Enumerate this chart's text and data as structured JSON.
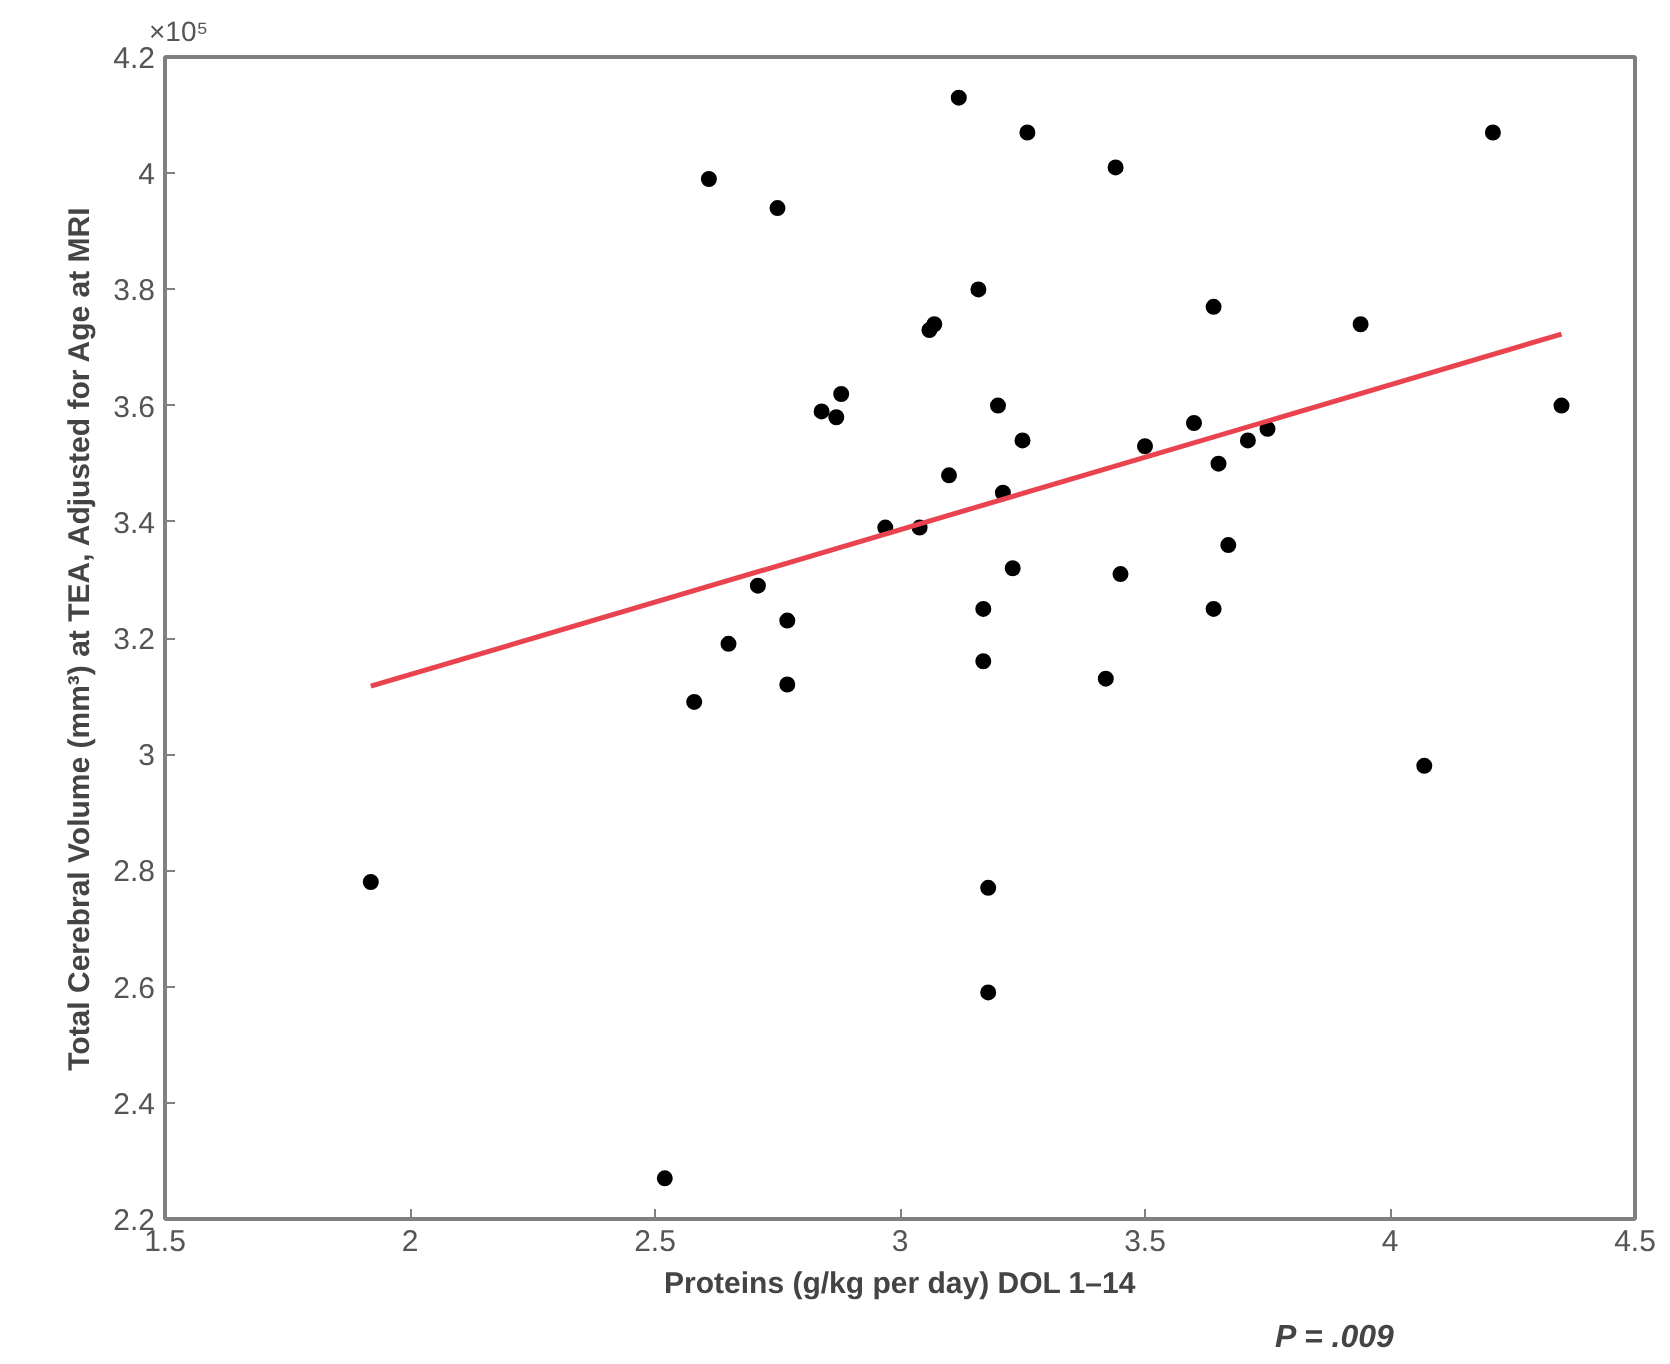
{
  "chart_data": {
    "type": "scatter",
    "xlabel": "Proteins (g/kg per day) DOL 1–14",
    "ylabel": "Total Cerebral Volume (mm³) at TEA, Adjusted for Age at MRI",
    "annotations": [
      "×10⁵",
      "P = .009"
    ],
    "xlim": [
      1.5,
      4.5
    ],
    "xticks": [
      1.5,
      2,
      2.5,
      3,
      3.5,
      4,
      4.5
    ],
    "ylim": [
      2.2,
      4.2
    ],
    "yticks": [
      2.2,
      2.4,
      2.6,
      2.8,
      3,
      3.2,
      3.4,
      3.6,
      3.8,
      4,
      4.2
    ],
    "grid": false,
    "series": [
      {
        "marker": "circle",
        "color": "#000000",
        "x": [
          1.92,
          2.52,
          2.58,
          2.65,
          2.71,
          2.77,
          2.77,
          2.61,
          2.75,
          2.84,
          2.87,
          2.88,
          2.97,
          3.04,
          3.06,
          3.07,
          3.1,
          3.12,
          3.16,
          3.17,
          3.17,
          3.18,
          3.18,
          3.2,
          3.21,
          3.23,
          3.25,
          3.26,
          3.42,
          3.44,
          3.45,
          3.5,
          3.6,
          3.64,
          3.64,
          3.65,
          3.67,
          3.71,
          3.75,
          3.94,
          4.07,
          4.21,
          4.35
        ],
        "values": [
          2.78,
          2.27,
          3.09,
          3.19,
          3.29,
          3.23,
          3.12,
          3.99,
          3.94,
          3.59,
          3.58,
          3.62,
          3.39,
          3.39,
          3.73,
          3.74,
          3.48,
          4.13,
          3.8,
          3.25,
          3.16,
          2.77,
          2.59,
          3.6,
          3.45,
          3.32,
          3.54,
          4.07,
          3.13,
          4.01,
          3.31,
          3.53,
          3.57,
          3.77,
          3.25,
          3.5,
          3.36,
          3.54,
          3.56,
          3.74,
          2.98,
          4.07,
          3.6
        ]
      },
      {
        "type": "line",
        "color": "#e8434f",
        "line_style": "solid",
        "x": [
          1.92,
          4.35
        ],
        "values": [
          3.117,
          3.723
        ]
      }
    ]
  }
}
